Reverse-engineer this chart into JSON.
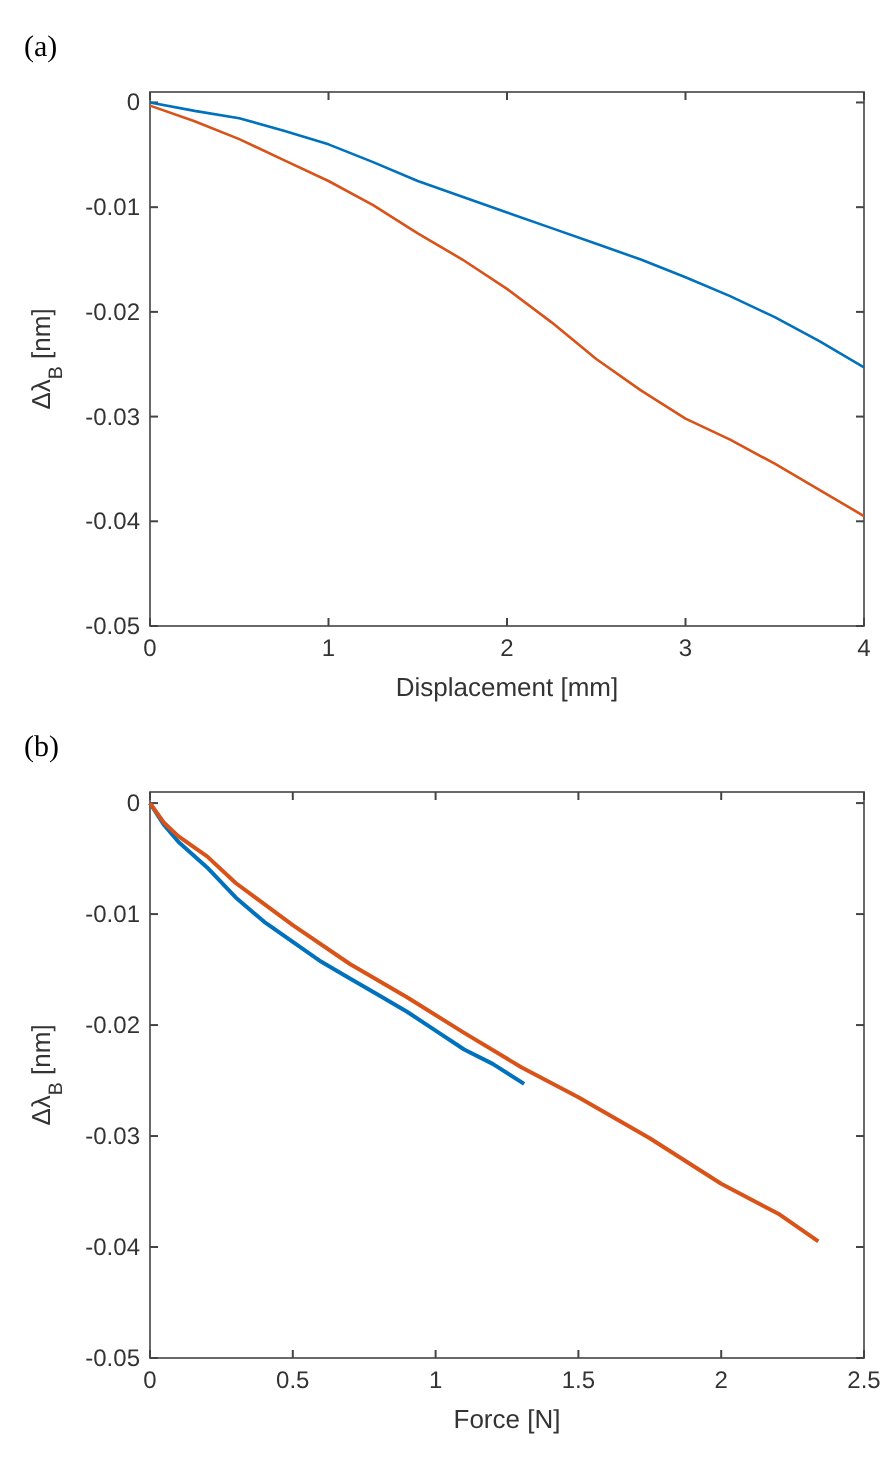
{
  "chart_data": [
    {
      "type": "line",
      "title": "(a)",
      "xlabel": "Displacement [mm]",
      "ylabel": "Δλ$_{B}$ [nm]",
      "xlim": [
        0,
        4
      ],
      "xticks": [
        0,
        1,
        2,
        3,
        4
      ],
      "ylim": [
        -0.05,
        0.001
      ],
      "yticks": [
        -0.05,
        -0.04,
        -0.03,
        -0.02,
        -0.01,
        0
      ],
      "grid": false,
      "series": [
        {
          "color": "#0072bd",
          "x": [
            0,
            0.25,
            0.5,
            0.75,
            1,
            1.25,
            1.5,
            1.75,
            2,
            2.25,
            2.5,
            2.75,
            3,
            3.25,
            3.5,
            3.75,
            4
          ],
          "values": [
            0,
            -0.0008,
            -0.0015,
            -0.0027,
            -0.004,
            -0.0057,
            -0.0075,
            -0.009,
            -0.0105,
            -0.012,
            -0.0135,
            -0.015,
            -0.0167,
            -0.0185,
            -0.0205,
            -0.0228,
            -0.0253
          ]
        },
        {
          "color": "#d95319",
          "x": [
            0,
            0.25,
            0.5,
            0.75,
            1,
            1.25,
            1.5,
            1.75,
            2,
            2.25,
            2.5,
            2.75,
            3,
            3.25,
            3.5,
            3.75,
            4
          ],
          "values": [
            -0.0003,
            -0.0018,
            -0.0035,
            -0.0055,
            -0.0075,
            -0.0098,
            -0.0125,
            -0.015,
            -0.0178,
            -0.021,
            -0.0245,
            -0.0275,
            -0.0302,
            -0.0322,
            -0.0345,
            -0.037,
            -0.0395
          ]
        }
      ]
    },
    {
      "type": "line",
      "title": "(b)",
      "xlabel": "Force [N]",
      "ylabel": "Δλ$_{B}$ [nm]",
      "xlim": [
        0,
        2.5
      ],
      "xticks": [
        0,
        0.5,
        1,
        1.5,
        2,
        2.5
      ],
      "ylim": [
        -0.05,
        0.001
      ],
      "yticks": [
        -0.05,
        -0.04,
        -0.03,
        -0.02,
        -0.01,
        0
      ],
      "grid": false,
      "series": [
        {
          "color": "#0072bd",
          "x": [
            0,
            0.05,
            0.1,
            0.2,
            0.3,
            0.4,
            0.5,
            0.6,
            0.7,
            0.8,
            0.9,
            1,
            1.1,
            1.2,
            1.31
          ],
          "values": [
            0,
            -0.002,
            -0.0035,
            -0.0058,
            -0.0085,
            -0.0107,
            -0.0125,
            -0.0143,
            -0.0158,
            -0.0173,
            -0.0188,
            -0.0205,
            -0.0222,
            -0.0235,
            -0.0253
          ]
        },
        {
          "color": "#d95319",
          "x": [
            0,
            0.05,
            0.1,
            0.2,
            0.3,
            0.5,
            0.7,
            0.9,
            1.1,
            1.3,
            1.5,
            1.75,
            2,
            2.2,
            2.34
          ],
          "values": [
            0,
            -0.0018,
            -0.003,
            -0.0048,
            -0.0072,
            -0.011,
            -0.0145,
            -0.0175,
            -0.0207,
            -0.0238,
            -0.0265,
            -0.0302,
            -0.0343,
            -0.037,
            -0.0395
          ]
        }
      ]
    }
  ]
}
